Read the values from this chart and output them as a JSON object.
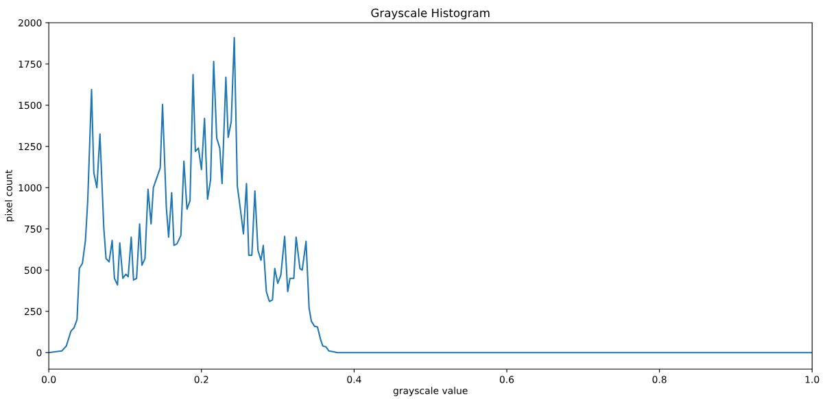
{
  "chart_data": {
    "type": "line",
    "title": "Grayscale Histogram",
    "xlabel": "grayscale value",
    "ylabel": "pixel count",
    "xlim": [
      0,
      1
    ],
    "xticks": [
      {
        "value": 0,
        "label": "0.0"
      },
      {
        "value": 0.2,
        "label": "0.2"
      },
      {
        "value": 0.4,
        "label": "0.4"
      },
      {
        "value": 0.6,
        "label": "0.6"
      },
      {
        "value": 0.8,
        "label": "0.8"
      },
      {
        "value": 1,
        "label": "1.0"
      }
    ],
    "ylim": [
      -100,
      2000
    ],
    "yticks": [
      0,
      250,
      500,
      750,
      1000,
      1250,
      1500,
      1750,
      2000
    ],
    "grid": false,
    "series": [
      {
        "color": "#1f77b4",
        "x": [
          0,
          0.008,
          0.017,
          0.023,
          0.029,
          0.033,
          0.037,
          0.04,
          0.044,
          0.048,
          0.051,
          0.056,
          0.059,
          0.063,
          0.067,
          0.072,
          0.075,
          0.079,
          0.083,
          0.086,
          0.09,
          0.093,
          0.097,
          0.101,
          0.104,
          0.108,
          0.111,
          0.115,
          0.119,
          0.122,
          0.126,
          0.13,
          0.134,
          0.137,
          0.146,
          0.149,
          0.154,
          0.157,
          0.161,
          0.164,
          0.168,
          0.173,
          0.177,
          0.181,
          0.185,
          0.189,
          0.192,
          0.196,
          0.2,
          0.204,
          0.208,
          0.212,
          0.216,
          0.22,
          0.224,
          0.227,
          0.232,
          0.235,
          0.239,
          0.243,
          0.247,
          0.251,
          0.255,
          0.259,
          0.262,
          0.266,
          0.27,
          0.274,
          0.278,
          0.281,
          0.285,
          0.289,
          0.293,
          0.296,
          0.3,
          0.304,
          0.309,
          0.313,
          0.316,
          0.321,
          0.324,
          0.329,
          0.332,
          0.337,
          0.341,
          0.344,
          0.348,
          0.352,
          0.356,
          0.359,
          0.363,
          0.367,
          0.373,
          0.378,
          1
        ],
        "values": [
          0,
          5,
          10,
          40,
          130,
          150,
          200,
          510,
          540,
          680,
          920,
          1595,
          1090,
          1000,
          1325,
          760,
          570,
          550,
          680,
          450,
          410,
          665,
          450,
          475,
          460,
          700,
          440,
          450,
          780,
          530,
          570,
          990,
          780,
          1000,
          1120,
          1505,
          880,
          700,
          970,
          650,
          660,
          710,
          1160,
          870,
          920,
          1685,
          1220,
          1240,
          1110,
          1420,
          930,
          1050,
          1765,
          1300,
          1240,
          1025,
          1670,
          1305,
          1400,
          1910,
          1010,
          870,
          720,
          1025,
          590,
          590,
          980,
          620,
          560,
          650,
          370,
          310,
          320,
          510,
          420,
          470,
          705,
          370,
          450,
          450,
          700,
          510,
          500,
          675,
          270,
          190,
          160,
          155,
          80,
          40,
          35,
          10,
          5,
          0,
          0
        ]
      }
    ]
  }
}
